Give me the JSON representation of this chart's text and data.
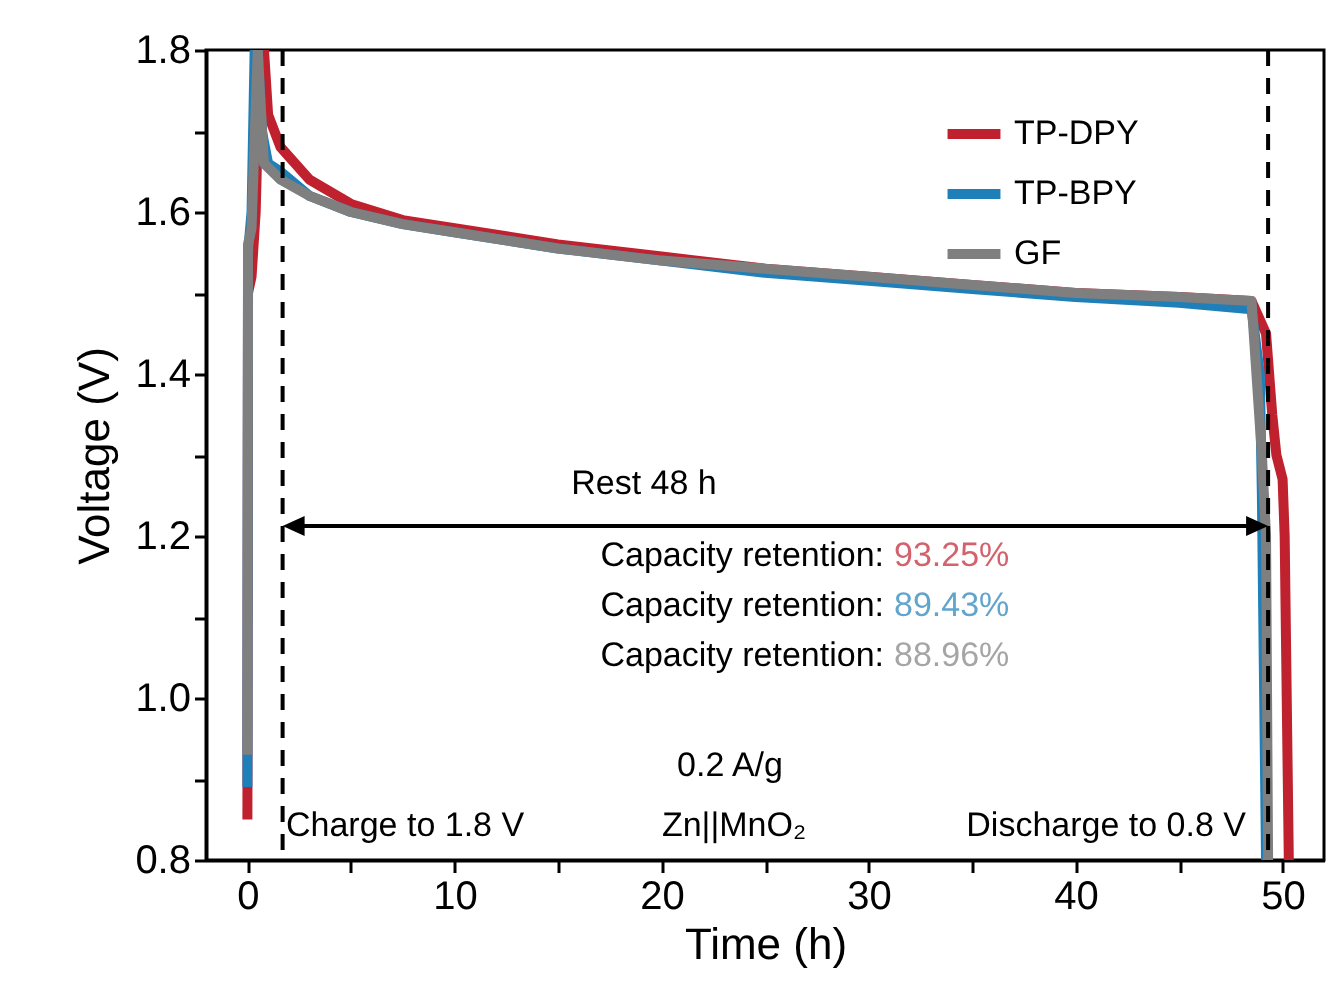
{
  "chart_data": {
    "type": "line",
    "xlabel": "Time (h)",
    "ylabel": "Voltage (V)",
    "xlim": [
      -2,
      52
    ],
    "ylim": [
      0.8,
      1.8
    ],
    "xticks": [
      0,
      {
        "value": 5,
        "label": null
      },
      10,
      {
        "value": 15,
        "label": null
      },
      20,
      {
        "value": 25,
        "label": null
      },
      30,
      {
        "value": 35,
        "label": null
      },
      40,
      {
        "value": 45,
        "label": null
      },
      50
    ],
    "yticks": [
      0.8,
      {
        "value": 0.9,
        "label": null
      },
      {
        "value": 1,
        "label": "1.0"
      },
      {
        "value": 1.1,
        "label": null
      },
      1.2,
      {
        "value": 1.3,
        "label": null
      },
      1.4,
      {
        "value": 1.5,
        "label": null
      },
      1.6,
      {
        "value": 1.7,
        "label": null
      },
      1.8
    ],
    "grid": false,
    "legend": "top right",
    "series": [
      {
        "name": "TP-DPY",
        "color": "#c0212e",
        "x": [
          0,
          0.03,
          0.2,
          0.4,
          0.6,
          0.8,
          1,
          1.6,
          3,
          5,
          7.5,
          10,
          15,
          20,
          25,
          30,
          35,
          40,
          45,
          48.5,
          49.2,
          49.5,
          49.7,
          50,
          50.1,
          50.3
        ],
        "values": [
          0.85,
          1.5,
          1.52,
          1.6,
          1.8,
          1.8,
          1.72,
          1.68,
          1.64,
          1.61,
          1.59,
          1.58,
          1.56,
          1.545,
          1.53,
          1.52,
          1.51,
          1.5,
          1.495,
          1.49,
          1.45,
          1.35,
          1.3,
          1.27,
          1.2,
          0.8
        ]
      },
      {
        "name": "TP-BPY",
        "color": "#1f7fb8",
        "x": [
          0,
          0.03,
          0.2,
          0.35,
          0.5,
          0.7,
          1,
          1.6,
          3,
          5,
          7.5,
          10,
          15,
          20,
          25,
          30,
          35,
          40,
          45,
          48.5,
          48.9,
          49,
          49.2
        ],
        "values": [
          0.89,
          1.55,
          1.6,
          1.8,
          1.8,
          1.7,
          1.66,
          1.65,
          1.62,
          1.6,
          1.585,
          1.575,
          1.555,
          1.54,
          1.525,
          1.515,
          1.505,
          1.495,
          1.488,
          1.48,
          1.4,
          1.25,
          0.8
        ]
      },
      {
        "name": "GF",
        "color": "#7f7f7f",
        "x": [
          0,
          0.03,
          0.2,
          0.5,
          0.6,
          0.8,
          1.6,
          3,
          5,
          7.5,
          10,
          15,
          20,
          25,
          30,
          35,
          40,
          45,
          48.5,
          49,
          49.2,
          49.3
        ],
        "values": [
          0.93,
          1.56,
          1.58,
          1.8,
          1.75,
          1.66,
          1.64,
          1.62,
          1.6,
          1.585,
          1.575,
          1.555,
          1.54,
          1.53,
          1.52,
          1.51,
          1.5,
          1.495,
          1.49,
          1.3,
          1.2,
          0.8
        ]
      }
    ],
    "ref_lines": [
      {
        "axis": "x",
        "value": 1.7,
        "color": "#000000",
        "line_style": "dashed"
      },
      {
        "axis": "x",
        "value": 49.3,
        "color": "#000000",
        "line_style": "dashed"
      }
    ],
    "annotations": [
      "Capacity retention: 93.25%",
      "Capacity retention: 89.43%",
      "Capacity retention: 88.96%",
      "Rest 48 h",
      "0.2 A/g",
      "Charge to 1.8 V",
      "Zn||MnO₂",
      "Discharge to 0.8 V"
    ]
  }
}
